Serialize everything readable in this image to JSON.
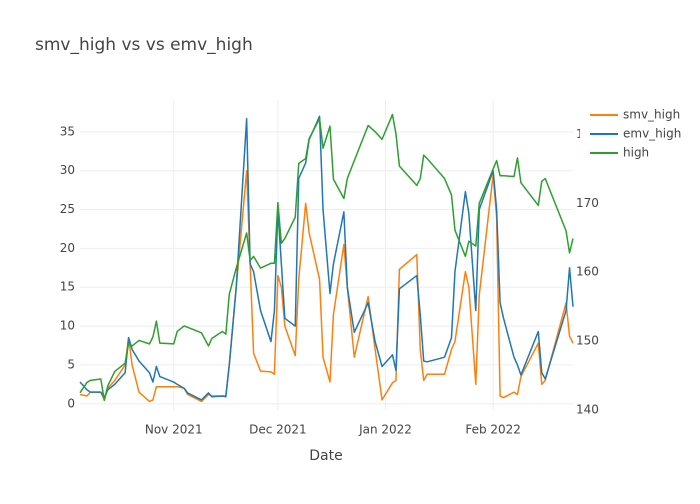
{
  "chart_data": {
    "type": "line",
    "title": "smv_high vs vs emv_high",
    "x_label": "Date",
    "x": [
      "2021-10-05",
      "2021-10-07",
      "2021-10-08",
      "2021-10-11",
      "2021-10-12",
      "2021-10-13",
      "2021-10-15",
      "2021-10-18",
      "2021-10-19",
      "2021-10-20",
      "2021-10-22",
      "2021-10-25",
      "2021-10-26",
      "2021-10-27",
      "2021-10-28",
      "2021-11-01",
      "2021-11-02",
      "2021-11-04",
      "2021-11-05",
      "2021-11-09",
      "2021-11-11",
      "2021-11-12",
      "2021-11-15",
      "2021-11-16",
      "2021-11-17",
      "2021-11-19",
      "2021-11-22",
      "2021-11-23",
      "2021-11-24",
      "2021-11-26",
      "2021-11-29",
      "2021-11-30",
      "2021-12-01",
      "2021-12-02",
      "2021-12-03",
      "2021-12-06",
      "2021-12-07",
      "2021-12-09",
      "2021-12-10",
      "2021-12-13",
      "2021-12-14",
      "2021-12-16",
      "2021-12-17",
      "2021-12-20",
      "2021-12-21",
      "2021-12-23",
      "2021-12-27",
      "2021-12-29",
      "2021-12-31",
      "2022-01-03",
      "2022-01-04",
      "2022-01-05",
      "2022-01-10",
      "2022-01-11",
      "2022-01-12",
      "2022-01-13",
      "2022-01-18",
      "2022-01-20",
      "2022-01-21",
      "2022-01-24",
      "2022-01-25",
      "2022-01-27",
      "2022-01-28",
      "2022-02-01",
      "2022-02-02",
      "2022-02-03",
      "2022-02-04",
      "2022-02-07",
      "2022-02-08",
      "2022-02-09",
      "2022-02-14",
      "2022-02-15",
      "2022-02-16",
      "2022-02-22",
      "2022-02-23",
      "2022-02-24"
    ],
    "xlim": [
      "2021-10-05",
      "2022-02-24"
    ],
    "xticks": [
      {
        "value": "2021-11-01",
        "label": "Nov 2021"
      },
      {
        "value": "2021-12-01",
        "label": "Dec 2021"
      },
      {
        "value": "2022-01-01",
        "label": "Jan 2022"
      },
      {
        "value": "2022-02-01",
        "label": "Feb 2022"
      }
    ],
    "ylim": [
      -0.8,
      39.1
    ],
    "yticks": [
      0,
      5,
      10,
      15,
      20,
      25,
      30,
      35
    ],
    "y2lim": [
      140,
      185
    ],
    "y2ticks": [
      140,
      150,
      160,
      170,
      180
    ],
    "grid": true,
    "series": [
      {
        "name": "smv_high",
        "color": "#ff7f0e",
        "values": [
          1.2,
          1.0,
          1.5,
          1.5,
          0.5,
          2,
          3,
          5,
          8.5,
          5,
          1.5,
          0.3,
          0.5,
          2.2,
          2.2,
          2.2,
          2.2,
          2.0,
          1.2,
          0.3,
          1.2,
          1.0,
          1.0,
          1.0,
          5,
          15,
          30,
          18,
          6.5,
          4.2,
          4.1,
          3.8,
          16.5,
          15,
          10,
          6.2,
          16,
          25.8,
          22,
          16,
          6,
          2.8,
          11.5,
          20.5,
          15,
          6,
          13.8,
          7,
          0.5,
          2.7,
          3,
          17.3,
          19.2,
          7,
          3,
          3.8,
          3.8,
          7,
          8,
          17,
          15,
          2.5,
          14,
          29.5,
          24,
          1.0,
          0.8,
          1.5,
          1.2,
          3.5,
          7.8,
          2.5,
          3,
          13,
          8.7,
          7.8
        ]
      },
      {
        "name": "emv_high",
        "color": "#1f77b4",
        "values": [
          2.8,
          1.8,
          1.5,
          1.5,
          0.8,
          1.8,
          2.5,
          4,
          8.5,
          7,
          5.5,
          4,
          2.8,
          4.8,
          3.5,
          2.8,
          2.5,
          2.0,
          1.4,
          0.5,
          1.4,
          0.9,
          1.0,
          0.9,
          5,
          15,
          36.7,
          18,
          17,
          12,
          8,
          12,
          25,
          18,
          11,
          10,
          29,
          31,
          34,
          37,
          25,
          14.2,
          18,
          24.7,
          15,
          9.2,
          13,
          8,
          4.8,
          6.3,
          4.3,
          14.8,
          16.5,
          11.5,
          5.5,
          5.4,
          6,
          8.5,
          17,
          27.3,
          24.5,
          12,
          25,
          30,
          25,
          13,
          11,
          6,
          5,
          3.7,
          9.3,
          4,
          3.2,
          12,
          17.5,
          12.5
        ]
      },
      {
        "name": "high",
        "color": "#2ca02c",
        "axis": "y2",
        "values": [
          142.5,
          144,
          144.3,
          144.5,
          141.4,
          143.5,
          145.6,
          146.8,
          149.7,
          149.3,
          150.1,
          149.6,
          150.6,
          152.9,
          149.7,
          149.6,
          151.4,
          152.2,
          152,
          151.2,
          149.3,
          150.4,
          151.4,
          151,
          156.8,
          160.6,
          165.7,
          161.7,
          162.3,
          160.6,
          161.3,
          161.3,
          170.1,
          164.2,
          164.9,
          168,
          175.8,
          176.5,
          179.4,
          182.3,
          178,
          181.2,
          173.5,
          170.7,
          173.6,
          176.2,
          181.3,
          180.4,
          179.3,
          182.9,
          180.1,
          175.4,
          172.6,
          173.6,
          177,
          176.5,
          173.6,
          171.2,
          166.1,
          162.3,
          164.5,
          163.8,
          170,
          175,
          176.2,
          174,
          174,
          173.9,
          176.6,
          173,
          169.7,
          173.2,
          173.6,
          166,
          162.8,
          164.9
        ]
      }
    ]
  }
}
